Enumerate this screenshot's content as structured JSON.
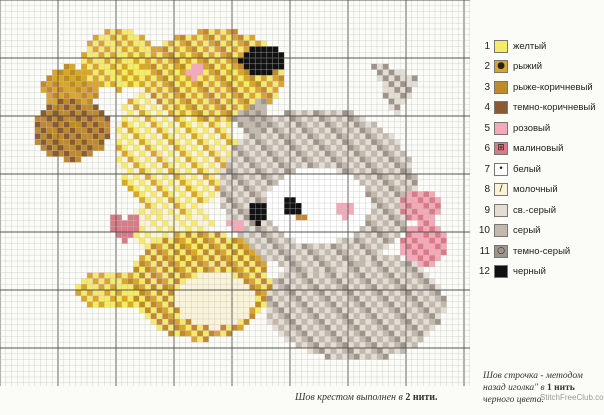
{
  "legend": [
    {
      "num": "1",
      "name": "желтый",
      "color": "#f5ea6a",
      "symbol": ""
    },
    {
      "num": "2",
      "name": "рыжий",
      "color": "#d9a52b",
      "symbol": "●"
    },
    {
      "num": "3",
      "name": "рыже-коричневый",
      "color": "#c08a2a",
      "symbol": ""
    },
    {
      "num": "4",
      "name": "темно-коричневый",
      "color": "#8a5a32",
      "symbol": ""
    },
    {
      "num": "5",
      "name": "розовый",
      "color": "#f4a8b8",
      "symbol": ""
    },
    {
      "num": "6",
      "name": "малиновый",
      "color": "#d97a86",
      "symbol": "⊞"
    },
    {
      "num": "7",
      "name": "белый",
      "color": "#ffffff",
      "symbol": "•"
    },
    {
      "num": "8",
      "name": "молочный",
      "color": "#fbf3d8",
      "symbol": "/"
    },
    {
      "num": "9",
      "name": "св.-серый",
      "color": "#e4ddd3",
      "symbol": ""
    },
    {
      "num": "10",
      "name": "серый",
      "color": "#c2b8ac",
      "symbol": ""
    },
    {
      "num": "11",
      "name": "темно-серый",
      "color": "#9e9489",
      "symbol": "○"
    },
    {
      "num": "12",
      "name": "черный",
      "color": "#111111",
      "symbol": ""
    }
  ],
  "notes": {
    "left_text": "Шов крестом выполнен  в ",
    "left_bold": "2 нити.",
    "right_text": "Шов строчка - методом назад иголка\" в ",
    "right_bold": "1 нить",
    "right_tail": " черного цвета."
  },
  "watermark": "StitchFreeClub.com"
}
